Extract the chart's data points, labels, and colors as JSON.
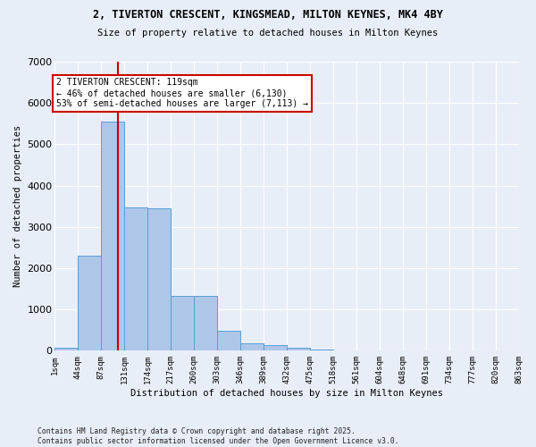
{
  "title1": "2, TIVERTON CRESCENT, KINGSMEAD, MILTON KEYNES, MK4 4BY",
  "title2": "Size of property relative to detached houses in Milton Keynes",
  "xlabel": "Distribution of detached houses by size in Milton Keynes",
  "ylabel": "Number of detached properties",
  "bar_values": [
    75,
    2300,
    5550,
    3470,
    3460,
    1330,
    1330,
    480,
    175,
    130,
    70,
    30,
    10,
    5,
    3,
    2,
    1,
    1,
    1,
    1
  ],
  "tick_labels": [
    "1sqm",
    "44sqm",
    "87sqm",
    "131sqm",
    "174sqm",
    "217sqm",
    "260sqm",
    "303sqm",
    "346sqm",
    "389sqm",
    "432sqm",
    "475sqm",
    "518sqm",
    "561sqm",
    "604sqm",
    "648sqm",
    "691sqm",
    "734sqm",
    "777sqm",
    "820sqm",
    "863sqm"
  ],
  "bar_color": "#aec6e8",
  "bar_edge_color": "#5a9fd4",
  "bg_color": "#e8eef8",
  "grid_color": "#ffffff",
  "vline_x": 119,
  "vline_color": "#cc0000",
  "annotation_text": "2 TIVERTON CRESCENT: 119sqm\n← 46% of detached houses are smaller (6,130)\n53% of semi-detached houses are larger (7,113) →",
  "annotation_box_color": "#ffffff",
  "annotation_box_edge": "#cc0000",
  "ylim": [
    0,
    7000
  ],
  "yticks": [
    0,
    1000,
    2000,
    3000,
    4000,
    5000,
    6000,
    7000
  ],
  "footer": "Contains HM Land Registry data © Crown copyright and database right 2025.\nContains public sector information licensed under the Open Government Licence v3.0.",
  "bin_edges_sqm": [
    1,
    44,
    87,
    131,
    174,
    217,
    260,
    303,
    346,
    389,
    432,
    475,
    518,
    561,
    604,
    648,
    691,
    734,
    777,
    820,
    863
  ],
  "n_bars": 20
}
